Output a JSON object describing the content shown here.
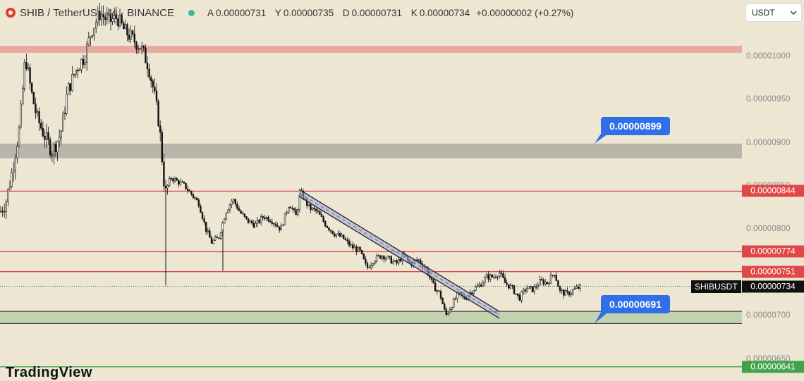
{
  "header": {
    "symbol": "SHIB / TetherUS · 4s · BINANCE",
    "open_label": "A",
    "open": "0.00000731",
    "high_label": "Y",
    "high": "0.00000735",
    "low_label": "D",
    "low": "0.00000731",
    "close_label": "K",
    "close": "0.00000734",
    "change": "+0.00000002 (+0.27%)"
  },
  "currency_select": {
    "value": "USDT",
    "icon": "chevron-down-icon"
  },
  "ticker_tag": {
    "symbol": "SHIBUSDT",
    "price": "0.00000734"
  },
  "callouts": [
    {
      "label": "0.00000899",
      "price": 8.99e-06
    },
    {
      "label": "0.00000691",
      "price": 6.91e-06
    }
  ],
  "brand": "TradingView",
  "colors": {
    "background": "#ede6d3",
    "resistance": "#e04848",
    "support": "#3fa44a",
    "callout": "#2f6fe8",
    "candle": "#111111"
  },
  "chart_data": {
    "type": "candlestick",
    "ylim": [
      6.335e-06,
      1.065e-05
    ],
    "y_ticks": [
      "0.00001000",
      "0.00000950",
      "0.00000900",
      "0.00000850",
      "0.00000800",
      "0.00000750",
      "0.00000700",
      "0.00000650"
    ],
    "price_levels": [
      {
        "label": "0.00000844",
        "price": 8.44e-06,
        "color": "#e04848"
      },
      {
        "label": "0.00000774",
        "price": 7.74e-06,
        "color": "#e04848"
      },
      {
        "label": "0.00000751",
        "price": 7.51e-06,
        "color": "#e04848"
      },
      {
        "label": "0.00000641",
        "price": 6.41e-06,
        "color": "#3fa44a"
      }
    ],
    "zones": [
      {
        "from": 1.004e-05,
        "to": 1.012e-05,
        "color": "#e8a9a0"
      },
      {
        "from": 8.82e-06,
        "to": 8.99e-06,
        "color": "#b9b5aa"
      },
      {
        "from": 6.91e-06,
        "to": 7.05e-06,
        "color": "#c3d3b0"
      }
    ],
    "current_price": 7.34e-06,
    "trend_channel": [
      {
        "from": 8.46e-06,
        "to": 7.05e-06
      },
      {
        "from": 8.38e-06,
        "to": 6.97e-06
      }
    ],
    "path": [
      [
        0,
        8.2e-06
      ],
      [
        8,
        8.3e-06
      ],
      [
        18,
        8.7e-06
      ],
      [
        28,
        9.2e-06
      ],
      [
        36,
        1e-05
      ],
      [
        44,
        9.6e-06
      ],
      [
        52,
        9.3e-06
      ],
      [
        62,
        9.1e-06
      ],
      [
        74,
        8.9e-06
      ],
      [
        86,
        9.1e-06
      ],
      [
        96,
        9.6e-06
      ],
      [
        108,
        9.85e-06
      ],
      [
        120,
        1e-05
      ],
      [
        130,
        1.03e-05
      ],
      [
        142,
        1.05e-05
      ],
      [
        154,
        1.04e-05
      ],
      [
        166,
        1.045e-05
      ],
      [
        176,
        1.03e-05
      ],
      [
        188,
        1.02e-05
      ],
      [
        200,
        1.01e-05
      ],
      [
        210,
        9.9e-06
      ],
      [
        218,
        9.6e-06
      ],
      [
        226,
        9.2e-06
      ],
      [
        234,
        8.4e-06
      ],
      [
        242,
        8.6e-06
      ],
      [
        252,
        8.55e-06
      ],
      [
        262,
        8.5e-06
      ],
      [
        272,
        8.4e-06
      ],
      [
        282,
        8.3e-06
      ],
      [
        292,
        8e-06
      ],
      [
        300,
        7.85e-06
      ],
      [
        310,
        7.9e-06
      ],
      [
        320,
        8.2e-06
      ],
      [
        330,
        8.35e-06
      ],
      [
        340,
        8.2e-06
      ],
      [
        350,
        8.1e-06
      ],
      [
        362,
        8.05e-06
      ],
      [
        374,
        8.15e-06
      ],
      [
        386,
        8.1e-06
      ],
      [
        398,
        8e-06
      ],
      [
        410,
        8.3e-06
      ],
      [
        420,
        8.15e-06
      ],
      [
        426,
        8.43e-06
      ],
      [
        438,
        8.25e-06
      ],
      [
        450,
        8.2e-06
      ],
      [
        462,
        8.05e-06
      ],
      [
        474,
        7.95e-06
      ],
      [
        486,
        7.9e-06
      ],
      [
        498,
        7.8e-06
      ],
      [
        510,
        7.75e-06
      ],
      [
        520,
        7.55e-06
      ],
      [
        530,
        7.65e-06
      ],
      [
        542,
        7.7e-06
      ],
      [
        552,
        7.65e-06
      ],
      [
        562,
        7.6e-06
      ],
      [
        572,
        7.7e-06
      ],
      [
        582,
        7.6e-06
      ],
      [
        592,
        7.65e-06
      ],
      [
        604,
        7.55e-06
      ],
      [
        614,
        7.35e-06
      ],
      [
        624,
        7.25e-06
      ],
      [
        632,
        7e-06
      ],
      [
        640,
        7.12e-06
      ],
      [
        650,
        7.25e-06
      ],
      [
        660,
        7.2e-06
      ],
      [
        670,
        7.3e-06
      ],
      [
        680,
        7.35e-06
      ],
      [
        690,
        7.45e-06
      ],
      [
        700,
        7.45e-06
      ],
      [
        708,
        7.5e-06
      ],
      [
        716,
        7.38e-06
      ],
      [
        726,
        7.32e-06
      ],
      [
        736,
        7.2e-06
      ],
      [
        746,
        7.32e-06
      ],
      [
        756,
        7.3e-06
      ],
      [
        766,
        7.4e-06
      ],
      [
        776,
        7.38e-06
      ],
      [
        786,
        7.5e-06
      ],
      [
        794,
        7.28e-06
      ],
      [
        804,
        7.25e-06
      ],
      [
        814,
        7.3e-06
      ],
      [
        824,
        7.34e-06
      ]
    ]
  }
}
